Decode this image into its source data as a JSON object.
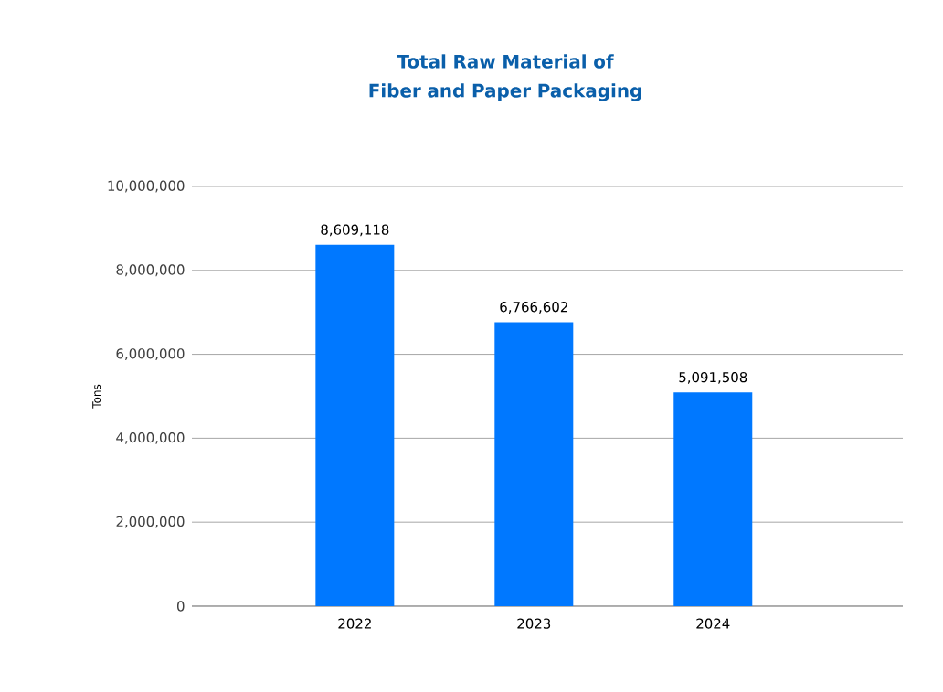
{
  "chart_data": {
    "type": "bar",
    "title": "Total Raw Material of Fiber and Paper Packaging",
    "ylabel": "Tons",
    "categories": [
      "2022",
      "2023",
      "2024"
    ],
    "values": [
      8609118,
      6766602,
      5091508
    ],
    "color": "#0078ff",
    "ylim": [
      0,
      10000000
    ],
    "yticks": [
      {
        "value": 0,
        "label": "0"
      },
      {
        "value": 2000000,
        "label": "2,000,000"
      },
      {
        "value": 4000000,
        "label": "4,000,000"
      },
      {
        "value": 6000000,
        "label": "6,000,000"
      },
      {
        "value": 8000000,
        "label": "8,000,000"
      },
      {
        "value": 10000000,
        "label": "10,000,000"
      }
    ],
    "value_labels": [
      "8,609,118",
      "6,766,602",
      "5,091,508"
    ],
    "grid": "y"
  }
}
